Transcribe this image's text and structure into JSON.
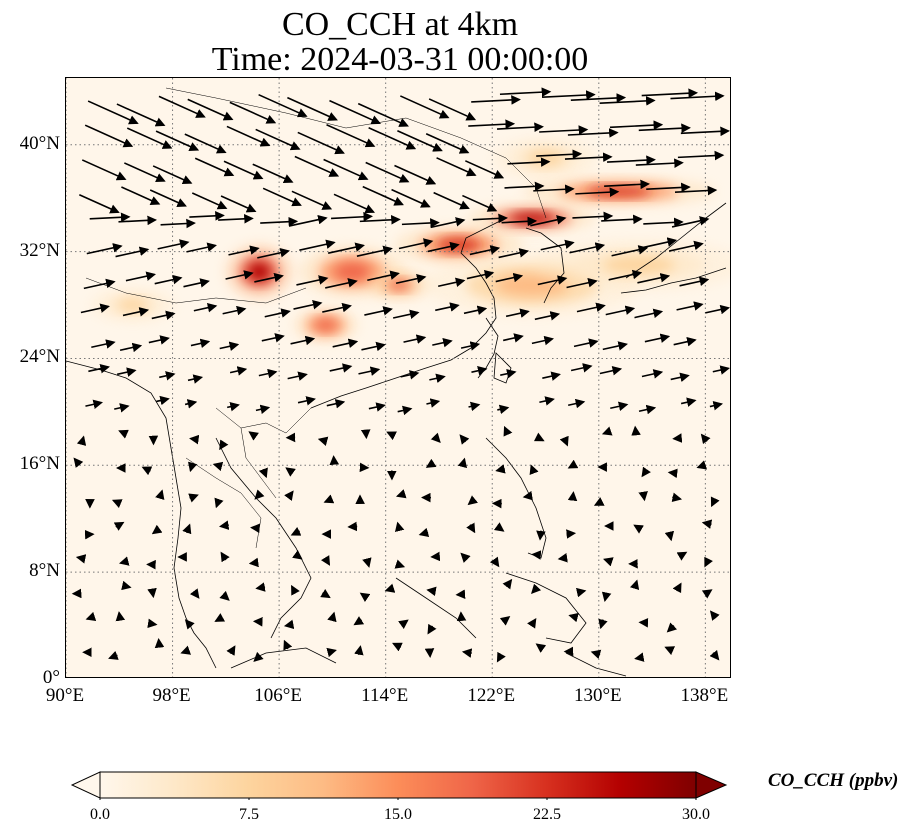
{
  "title": {
    "line1": "CO_CCH at 4km",
    "line2": "Time: 2024-03-31 00:00:00"
  },
  "map": {
    "lon_range": [
      90,
      140
    ],
    "lat_range": [
      0,
      45
    ],
    "lat_ticks": [
      {
        "value": 0,
        "label": "0°"
      },
      {
        "value": 8,
        "label": "8°N"
      },
      {
        "value": 16,
        "label": "16°N"
      },
      {
        "value": 24,
        "label": "24°N"
      },
      {
        "value": 32,
        "label": "32°N"
      },
      {
        "value": 40,
        "label": "40°N"
      }
    ],
    "lon_ticks": [
      {
        "value": 90,
        "label": "90°E"
      },
      {
        "value": 98,
        "label": "98°E"
      },
      {
        "value": 106,
        "label": "106°E"
      },
      {
        "value": 114,
        "label": "114°E"
      },
      {
        "value": 122,
        "label": "122°E"
      },
      {
        "value": 130,
        "label": "130°E"
      },
      {
        "value": 138,
        "label": "138°E"
      }
    ],
    "gridlines": "dotted",
    "background_color": "#fff6ea",
    "plumes": [
      {
        "name": "sichuan-basin-plume",
        "lon": 104.5,
        "lat": 30.5,
        "rlon": 1.6,
        "rlat": 1.3,
        "value": 28
      },
      {
        "name": "central-china-plume",
        "lon": 111.5,
        "lat": 30.5,
        "rlon": 2.5,
        "rlat": 1.2,
        "value": 20
      },
      {
        "name": "central-china-plume-b",
        "lon": 115.0,
        "lat": 29.5,
        "rlon": 1.5,
        "rlat": 0.7,
        "value": 18
      },
      {
        "name": "guangxi-plume",
        "lon": 109.5,
        "lat": 26.5,
        "rlon": 1.5,
        "rlat": 0.8,
        "value": 20
      },
      {
        "name": "yangtze-delta-plume",
        "lon": 119.5,
        "lat": 32.5,
        "rlon": 3.0,
        "rlat": 0.9,
        "value": 22
      },
      {
        "name": "korea-japan-band-a",
        "lon": 125.0,
        "lat": 34.5,
        "rlon": 3.0,
        "rlat": 0.7,
        "value": 26
      },
      {
        "name": "korea-japan-band-b",
        "lon": 131.5,
        "lat": 36.5,
        "rlon": 4.5,
        "rlat": 0.7,
        "value": 24
      },
      {
        "name": "yellow-sea-plume",
        "lon": 126.0,
        "lat": 39.0,
        "rlon": 2.5,
        "rlat": 1.0,
        "value": 8
      },
      {
        "name": "east-china-sea-band",
        "lon": 125.0,
        "lat": 29.5,
        "rlon": 5.0,
        "rlat": 1.5,
        "value": 10
      },
      {
        "name": "west-pacific-band",
        "lon": 133.0,
        "lat": 31.0,
        "rlon": 5.0,
        "rlat": 1.2,
        "value": 7
      },
      {
        "name": "myanmar-plume",
        "lon": 95.0,
        "lat": 28.0,
        "rlon": 2.0,
        "rlat": 0.8,
        "value": 6
      }
    ],
    "wind_vectors_note": "quiver field; predominantly westerly to west-southwesterly aloft north of 20N, light and variable south"
  },
  "colorbar": {
    "min": 0.0,
    "max": 30.0,
    "ticks": [
      "0.0",
      "7.5",
      "15.0",
      "22.5",
      "30.0"
    ],
    "extend": "both",
    "colormap": "OrRd",
    "label": "CO_CCH (ppbv)",
    "colors": [
      "#fff7ec",
      "#fee8c8",
      "#fdd49e",
      "#fdbb84",
      "#fc8d59",
      "#ef6548",
      "#d7301f",
      "#b30000",
      "#7f0000"
    ]
  }
}
